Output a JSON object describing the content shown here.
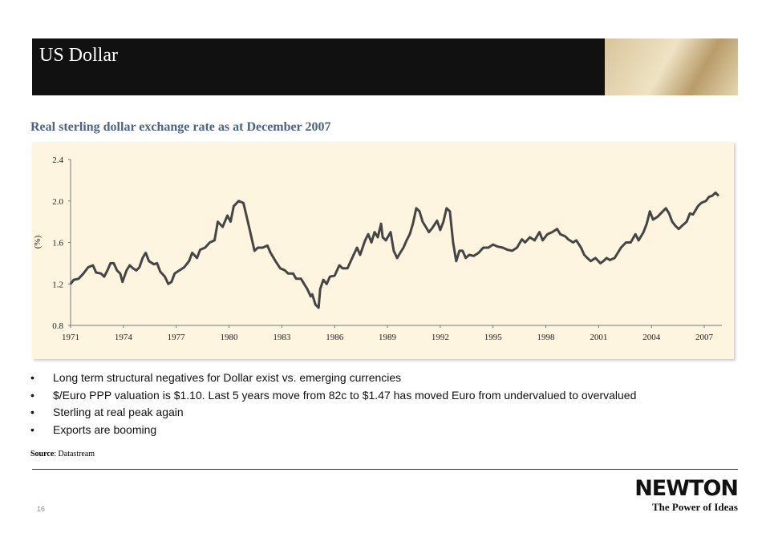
{
  "header": {
    "title": "US Dollar"
  },
  "chart_data": {
    "type": "line",
    "title": "Real sterling dollar exchange rate as at December 2007",
    "y_label": "(%)",
    "x": [
      1971.0,
      1971.18,
      1971.45,
      1971.73,
      1972.0,
      1972.27,
      1972.45,
      1972.73,
      1972.91,
      1973.09,
      1973.27,
      1973.45,
      1973.64,
      1973.82,
      1973.95,
      1974.18,
      1974.36,
      1974.55,
      1974.73,
      1974.91,
      1975.09,
      1975.27,
      1975.45,
      1975.73,
      1975.91,
      1976.09,
      1976.36,
      1976.55,
      1976.73,
      1976.91,
      1977.18,
      1977.45,
      1977.73,
      1977.91,
      1978.18,
      1978.36,
      1978.64,
      1978.91,
      1979.18,
      1979.36,
      1979.64,
      1979.91,
      1980.09,
      1980.27,
      1980.55,
      1980.82,
      1981.0,
      1981.18,
      1981.45,
      1981.64,
      1981.91,
      1982.18,
      1982.36,
      1982.64,
      1982.91,
      1983.18,
      1983.36,
      1983.64,
      1983.82,
      1984.09,
      1984.27,
      1984.45,
      1984.64,
      1984.73,
      1984.91,
      1985.09,
      1985.18,
      1985.36,
      1985.55,
      1985.73,
      1986.0,
      1986.27,
      1986.45,
      1986.73,
      1987.0,
      1987.27,
      1987.45,
      1987.73,
      1987.91,
      1988.09,
      1988.27,
      1988.45,
      1988.64,
      1988.73,
      1988.91,
      1989.18,
      1989.36,
      1989.55,
      1989.73,
      1989.91,
      1990.09,
      1990.27,
      1990.45,
      1990.64,
      1990.82,
      1991.0,
      1991.18,
      1991.36,
      1991.55,
      1991.82,
      1992.0,
      1992.18,
      1992.36,
      1992.55,
      1992.73,
      1992.91,
      1993.09,
      1993.27,
      1993.45,
      1993.64,
      1993.91,
      1994.18,
      1994.45,
      1994.73,
      1995.0,
      1995.27,
      1995.55,
      1995.82,
      1996.09,
      1996.36,
      1996.64,
      1996.82,
      1997.09,
      1997.36,
      1997.64,
      1997.82,
      1998.09,
      1998.36,
      1998.64,
      1998.82,
      1999.09,
      1999.27,
      1999.55,
      1999.73,
      2000.0,
      2000.18,
      2000.36,
      2000.55,
      2000.82,
      2001.09,
      2001.27,
      2001.45,
      2001.64,
      2001.91,
      2002.09,
      2002.27,
      2002.55,
      2002.82,
      2003.09,
      2003.27,
      2003.55,
      2003.73,
      2003.91,
      2004.09,
      2004.36,
      2004.64,
      2004.82,
      2005.0,
      2005.18,
      2005.36,
      2005.55,
      2005.73,
      2006.0,
      2006.18,
      2006.36,
      2006.64,
      2006.82,
      2007.09,
      2007.27,
      2007.45,
      2007.64,
      2007.82
    ],
    "series": [
      {
        "color": "#454545",
        "values": [
          1.2,
          1.24,
          1.25,
          1.3,
          1.36,
          1.38,
          1.31,
          1.3,
          1.27,
          1.33,
          1.4,
          1.4,
          1.33,
          1.3,
          1.22,
          1.33,
          1.38,
          1.35,
          1.33,
          1.36,
          1.45,
          1.5,
          1.42,
          1.39,
          1.4,
          1.32,
          1.27,
          1.2,
          1.22,
          1.3,
          1.33,
          1.36,
          1.42,
          1.5,
          1.45,
          1.53,
          1.55,
          1.6,
          1.62,
          1.8,
          1.75,
          1.86,
          1.8,
          1.95,
          2.0,
          1.98,
          1.85,
          1.72,
          1.52,
          1.55,
          1.55,
          1.57,
          1.5,
          1.42,
          1.35,
          1.33,
          1.3,
          1.3,
          1.25,
          1.25,
          1.2,
          1.15,
          1.08,
          1.1,
          1.0,
          0.97,
          1.15,
          1.24,
          1.2,
          1.27,
          1.28,
          1.38,
          1.35,
          1.35,
          1.45,
          1.55,
          1.48,
          1.62,
          1.68,
          1.6,
          1.7,
          1.65,
          1.78,
          1.65,
          1.62,
          1.7,
          1.52,
          1.45,
          1.5,
          1.55,
          1.62,
          1.68,
          1.78,
          1.93,
          1.9,
          1.8,
          1.75,
          1.7,
          1.74,
          1.81,
          1.72,
          1.8,
          1.93,
          1.9,
          1.6,
          1.42,
          1.52,
          1.52,
          1.45,
          1.48,
          1.47,
          1.5,
          1.55,
          1.55,
          1.58,
          1.56,
          1.55,
          1.53,
          1.52,
          1.55,
          1.63,
          1.6,
          1.65,
          1.62,
          1.7,
          1.62,
          1.68,
          1.7,
          1.73,
          1.68,
          1.66,
          1.63,
          1.6,
          1.62,
          1.55,
          1.48,
          1.45,
          1.42,
          1.45,
          1.4,
          1.42,
          1.45,
          1.43,
          1.45,
          1.5,
          1.55,
          1.6,
          1.6,
          1.68,
          1.62,
          1.7,
          1.78,
          1.9,
          1.82,
          1.85,
          1.9,
          1.93,
          1.88,
          1.8,
          1.76,
          1.73,
          1.76,
          1.8,
          1.88,
          1.87,
          1.95,
          1.98,
          2.0,
          2.04,
          2.05,
          2.08,
          2.05
        ]
      }
    ],
    "xlim": [
      1971,
      2008
    ],
    "xticks": [
      1971,
      1974,
      1977,
      1980,
      1983,
      1986,
      1989,
      1992,
      1995,
      1998,
      2001,
      2004,
      2007
    ],
    "ylim": [
      0.8,
      2.4
    ],
    "yticks": [
      0.8,
      1.2,
      1.6,
      {
        "value": 2,
        "label": "2.0"
      },
      2.4
    ]
  },
  "bullets": [
    "Long term structural negatives for Dollar exist vs. emerging currencies",
    "$/Euro PPP valuation is $1.10.  Last 5 years move from 82c to $1.47 has moved Euro from undervalued to overvalued",
    "Sterling at real peak again",
    "Exports are booming"
  ],
  "source": {
    "label": "Source",
    "text": ": Datastream"
  },
  "footer": {
    "page": "16",
    "logo": "NEWTON",
    "tagline": "The Power of Ideas"
  }
}
